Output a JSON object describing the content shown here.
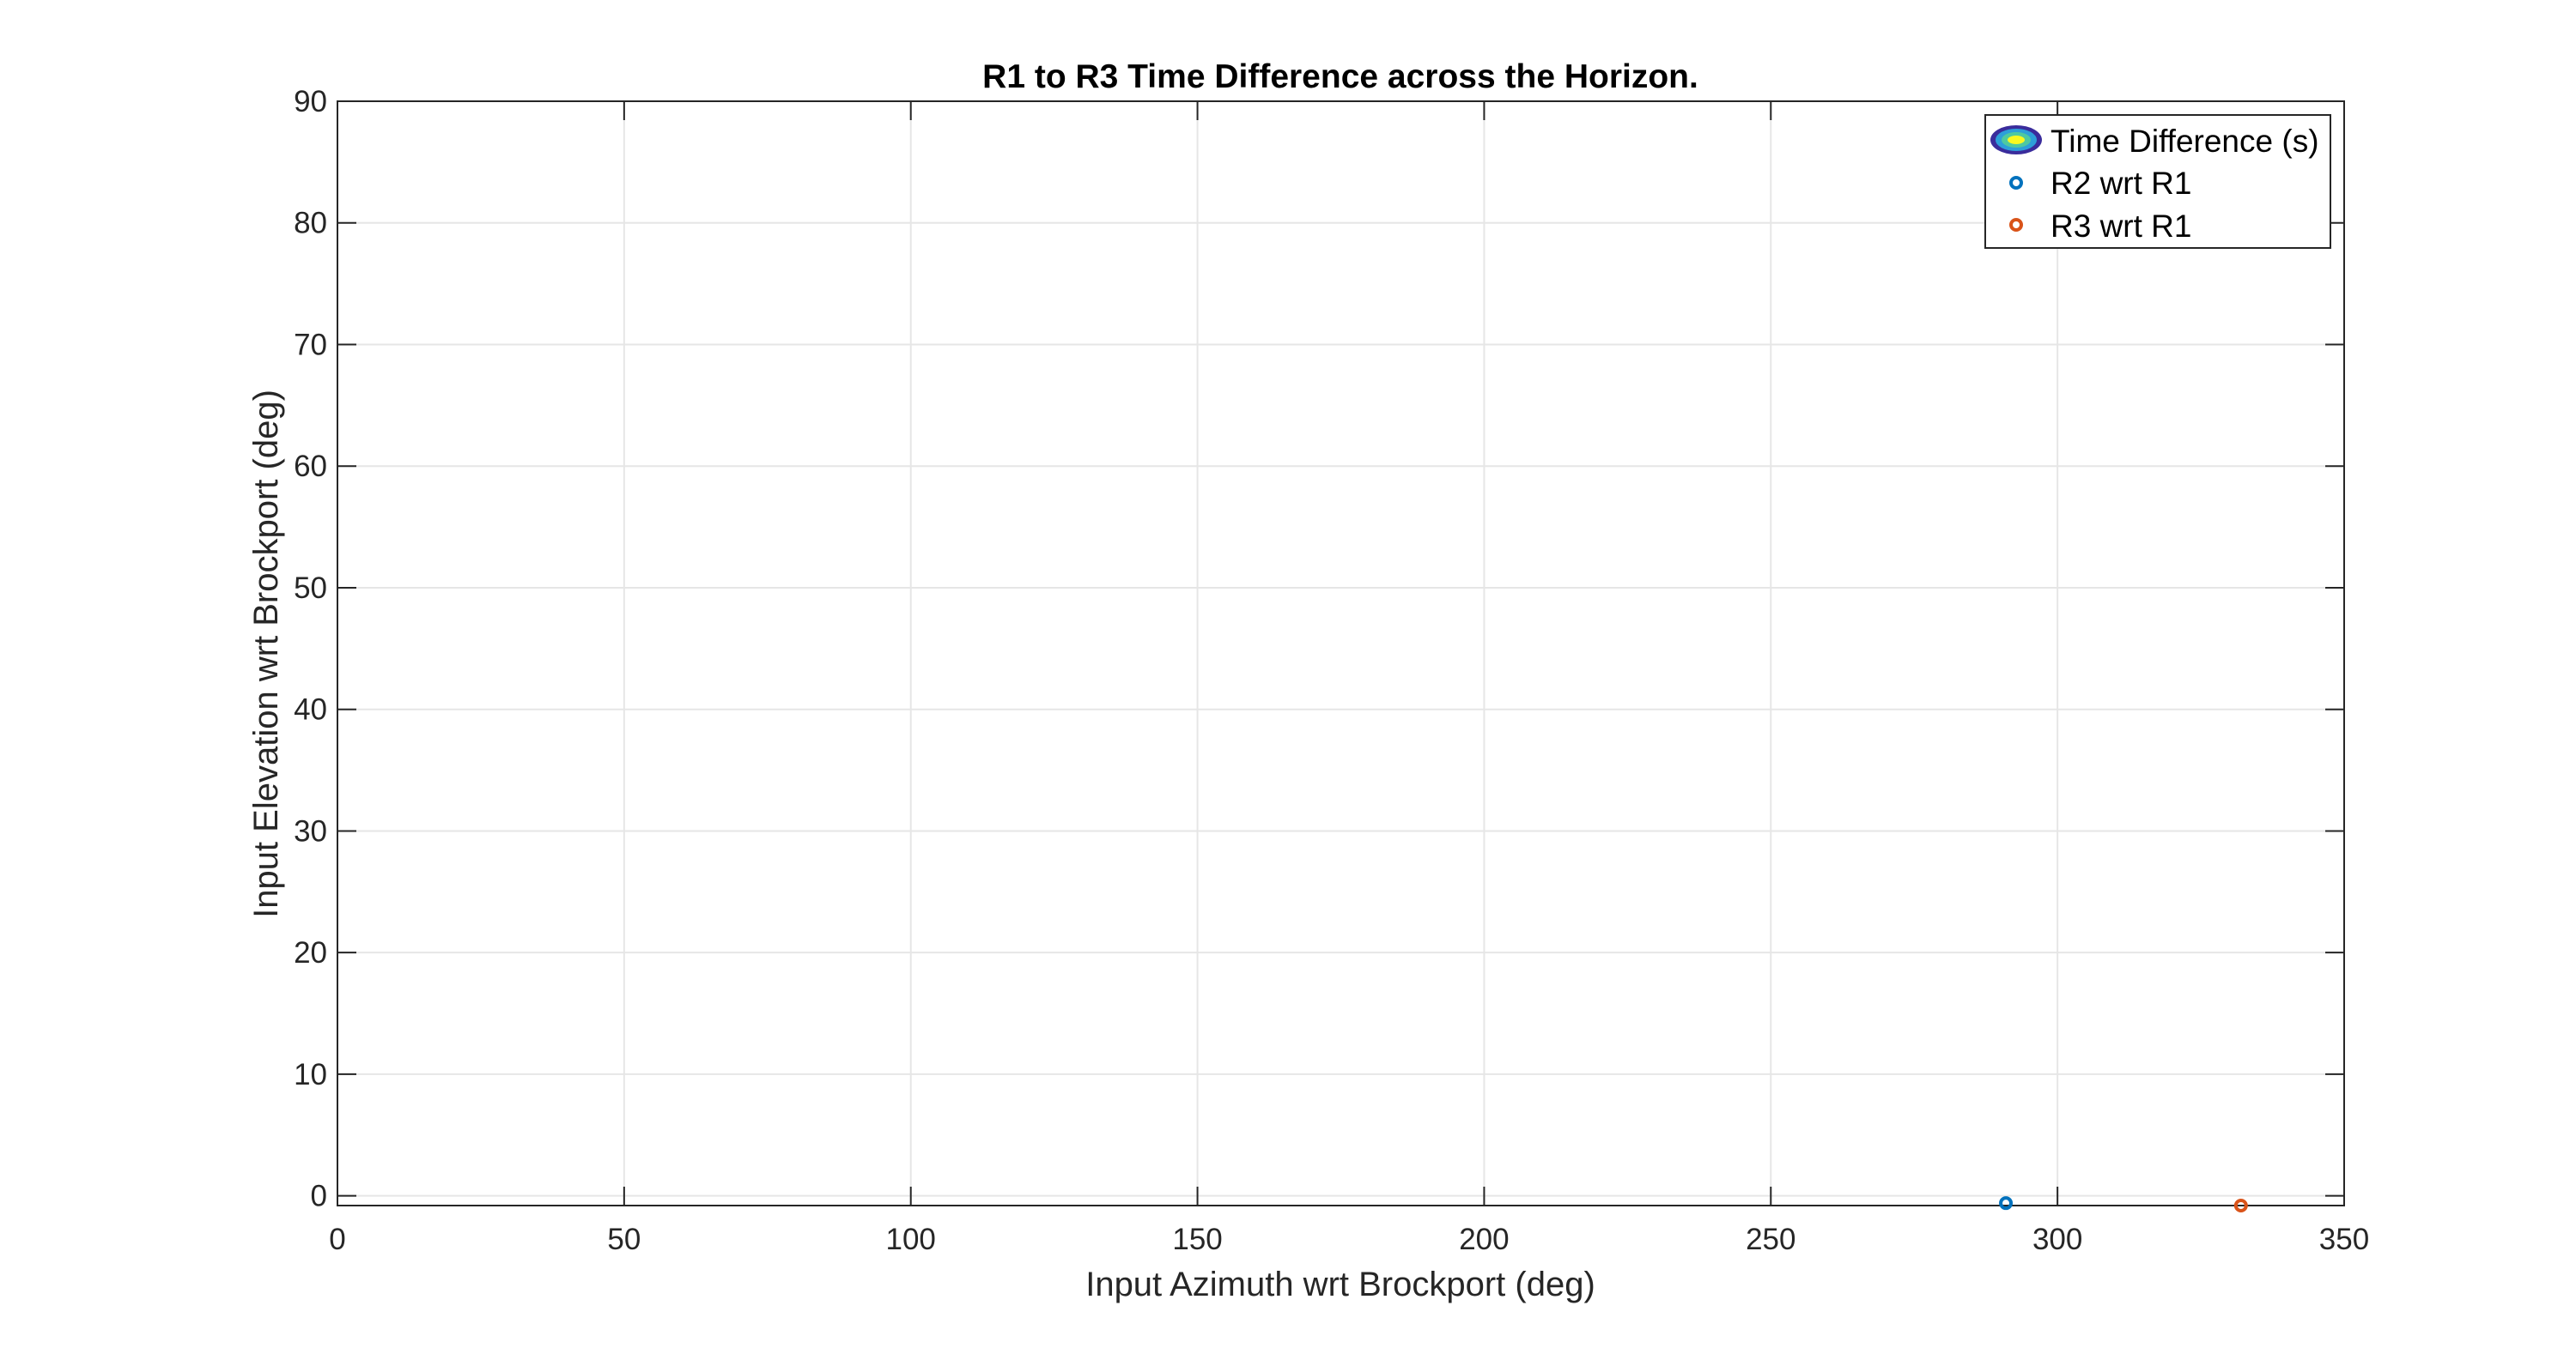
{
  "chart_data": {
    "type": "scatter",
    "title": "R1 to R3 Time Difference across the Horizon.",
    "xlabel": "Input Azimuth wrt Brockport (deg)",
    "ylabel": "Input Elevation wrt Brockport (deg)",
    "xlim": [
      0,
      350
    ],
    "ylim": [
      -0.8,
      90
    ],
    "xticks": [
      0,
      50,
      100,
      150,
      200,
      250,
      300,
      350
    ],
    "yticks": [
      0,
      10,
      20,
      30,
      40,
      50,
      60,
      70,
      80,
      90
    ],
    "grid": true,
    "legend_position": "top-right",
    "legend": [
      {
        "label": "Time Difference (s)",
        "marker": "contour",
        "colors": [
          "#3a2c9c",
          "#2d9fd9",
          "#4ec9a0",
          "#f9f920"
        ]
      },
      {
        "label": "R2 wrt R1",
        "marker": "o",
        "color": "#0072BD"
      },
      {
        "label": "R3 wrt R1",
        "marker": "o",
        "color": "#D95319"
      }
    ],
    "series": [
      {
        "name": "R2 wrt R1",
        "x": [
          291
        ],
        "y": [
          -0.6
        ],
        "color": "#0072BD",
        "marker": "o"
      },
      {
        "name": "R3 wrt R1",
        "x": [
          332
        ],
        "y": [
          -0.8
        ],
        "color": "#D95319",
        "marker": "o"
      }
    ]
  }
}
